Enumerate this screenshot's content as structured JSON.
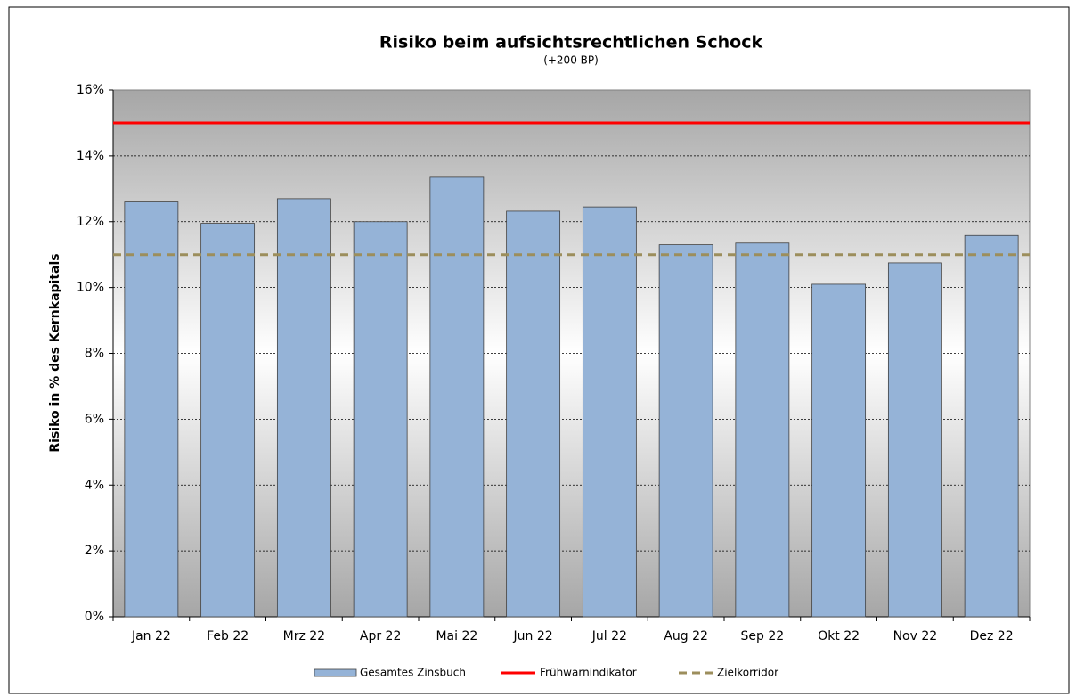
{
  "chart_data": {
    "type": "bar",
    "title": "Risiko beim aufsichtsrechtlichen Schock",
    "subtitle": "(+200 BP)",
    "y_label": "Risiko in % des Kernkapitals",
    "categories": [
      "Jan 22",
      "Feb 22",
      "Mrz 22",
      "Apr 22",
      "Mai 22",
      "Jun 22",
      "Jul 22",
      "Aug 22",
      "Sep 22",
      "Okt 22",
      "Nov 22",
      "Dez 22"
    ],
    "series": [
      {
        "name": "Gesamtes Zinsbuch",
        "color": "#95b3d7",
        "values": [
          12.6,
          11.95,
          12.7,
          12.0,
          13.35,
          12.32,
          12.45,
          11.3,
          11.35,
          10.1,
          10.75,
          11.58
        ]
      }
    ],
    "lines": [
      {
        "name": "Frühwarnindikator",
        "color": "#ff0000",
        "dashed": false,
        "value": 15
      },
      {
        "name": "Zielkorridor",
        "color": "#9c8e5c",
        "dashed": true,
        "value": 11
      }
    ],
    "ylim": [
      0,
      16
    ],
    "yticks": [
      {
        "value": 0,
        "label": "0%"
      },
      {
        "value": 2,
        "label": "2%"
      },
      {
        "value": 4,
        "label": "4%"
      },
      {
        "value": 6,
        "label": "6%"
      },
      {
        "value": 8,
        "label": "8%"
      },
      {
        "value": 10,
        "label": "10%"
      },
      {
        "value": 12,
        "label": "12%"
      },
      {
        "value": 14,
        "label": "14%"
      },
      {
        "value": 16,
        "label": "16%"
      }
    ],
    "grid": true
  }
}
